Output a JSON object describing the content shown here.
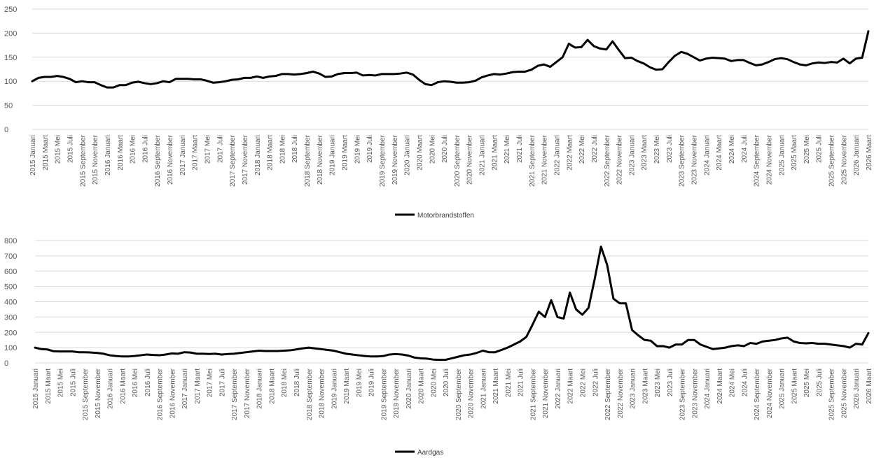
{
  "chart_data": [
    {
      "type": "line",
      "title": "",
      "xlabel": "",
      "ylabel": "",
      "ylim": [
        0,
        250
      ],
      "yticks": [
        0,
        50,
        100,
        150,
        200,
        250
      ],
      "grid": true,
      "legend": "bottom",
      "line_color": "#000000",
      "x_tick_labels": [
        "2015 Januari",
        "2015 Maart",
        "2015 Mei",
        "2015 Juli",
        "2015 September",
        "2015 November",
        "2016 Januari",
        "2016 Maart",
        "2016 Mei",
        "2016 Juli",
        "2016 September",
        "2016 November",
        "2017 Januari",
        "2017 Maart",
        "2017 Mei",
        "2017 Juli",
        "2017 September",
        "2017 November",
        "2018 Januari",
        "2018 Maart",
        "2018 Mei",
        "2018 Juli",
        "2018 September",
        "2018 November",
        "2019 Januari",
        "2019 Maart",
        "2019 Mei",
        "2019 Juli",
        "2019 September",
        "2019 November",
        "2020 Januari",
        "2020 Maart",
        "2020 Mei",
        "2020 Juli",
        "2020 September",
        "2020 November",
        "2021 Januari",
        "2021 Maart",
        "2021 Mei",
        "2021 Juli",
        "2021 September",
        "2021 November",
        "2022 Januari",
        "2022 Maart",
        "2022 Mei",
        "2022 Juli",
        "2022 September",
        "2022 November",
        "2023 Januari",
        "2023 Maart",
        "2023 Mei",
        "2023 Juli",
        "2023 September",
        "2023 November",
        "2024 Januari",
        "2024 Maart",
        "2024 Mei",
        "2024 Juli",
        "2024 September",
        "2024 November",
        "2025 Januari",
        "2025 Maart",
        "2025 Mei",
        "2025 Juli",
        "2025 September",
        "2025 November",
        "2026 Januari",
        "2026 Maart"
      ],
      "series": [
        {
          "name": "Motorbrandstoffen",
          "values": [
            100,
            107,
            109,
            109,
            111,
            109,
            105,
            98,
            100,
            98,
            98,
            92,
            87,
            87,
            92,
            92,
            97,
            99,
            96,
            94,
            96,
            100,
            98,
            105,
            105,
            105,
            104,
            104,
            101,
            97,
            98,
            100,
            103,
            104,
            107,
            107,
            110,
            107,
            110,
            111,
            115,
            115,
            114,
            115,
            117,
            120,
            116,
            109,
            110,
            115,
            117,
            117,
            118,
            112,
            113,
            112,
            115,
            115,
            115,
            116,
            118,
            114,
            103,
            94,
            92,
            98,
            100,
            99,
            97,
            97,
            98,
            101,
            108,
            112,
            115,
            114,
            116,
            119,
            120,
            120,
            124,
            132,
            135,
            130,
            140,
            150,
            178,
            170,
            171,
            186,
            173,
            168,
            166,
            183,
            165,
            148,
            149,
            142,
            137,
            129,
            124,
            125,
            140,
            153,
            161,
            157,
            150,
            143,
            147,
            149,
            148,
            147,
            142,
            144,
            144,
            138,
            133,
            135,
            140,
            146,
            148,
            146,
            140,
            135,
            133,
            137,
            139,
            138,
            140,
            139,
            147,
            137,
            147,
            149,
            204
          ]
        }
      ]
    },
    {
      "type": "line",
      "title": "",
      "xlabel": "",
      "ylabel": "",
      "ylim": [
        0,
        800
      ],
      "yticks": [
        0,
        100,
        200,
        300,
        400,
        500,
        600,
        700,
        800
      ],
      "grid": true,
      "legend": "bottom",
      "line_color": "#000000",
      "x_tick_labels": [
        "2015 Januari",
        "2015 Maart",
        "2015 Mei",
        "2015 Juli",
        "2015 September",
        "2015 November",
        "2016 Januari",
        "2016 Maart",
        "2016 Mei",
        "2016 Juli",
        "2016 September",
        "2016 November",
        "2017 Januari",
        "2017 Maart",
        "2017 Mei",
        "2017 Juli",
        "2017 September",
        "2017 November",
        "2018 Januari",
        "2018 Maart",
        "2018 Mei",
        "2018 Juli",
        "2018 September",
        "2018 November",
        "2019 Januari",
        "2019 Maart",
        "2019 Mei",
        "2019 Juli",
        "2019 September",
        "2019 November",
        "2020 Januari",
        "2020 Maart",
        "2020 Mei",
        "2020 Juli",
        "2020 September",
        "2020 November",
        "2021 Januari",
        "2021 Maart",
        "2021 Mei",
        "2021 Juli",
        "2021 September",
        "2021 November",
        "2022 Januari",
        "2022 Maart",
        "2022 Mei",
        "2022 Juli",
        "2022 September",
        "2022 November",
        "2023 Januari",
        "2023 Maart",
        "2023 Mei",
        "2023 Juli",
        "2023 September",
        "2023 November",
        "2024 Januari",
        "2024 Maart",
        "2024 Mei",
        "2024 Juli",
        "2024 September",
        "2024 November",
        "2025 Januari",
        "2025 Maart",
        "2025 Mei",
        "2025 Juli",
        "2025 September",
        "2025 November",
        "2026 Januari",
        "2026 Maart"
      ],
      "series": [
        {
          "name": "Aardgas",
          "values": [
            100,
            90,
            88,
            76,
            75,
            75,
            75,
            70,
            70,
            68,
            65,
            60,
            50,
            45,
            42,
            42,
            45,
            50,
            55,
            52,
            50,
            55,
            62,
            60,
            70,
            68,
            60,
            60,
            58,
            60,
            55,
            58,
            60,
            65,
            70,
            75,
            80,
            78,
            78,
            78,
            80,
            82,
            88,
            95,
            100,
            95,
            90,
            85,
            80,
            70,
            60,
            55,
            50,
            45,
            42,
            42,
            45,
            55,
            58,
            55,
            48,
            35,
            30,
            28,
            22,
            20,
            20,
            30,
            40,
            50,
            55,
            65,
            80,
            70,
            70,
            85,
            100,
            120,
            140,
            170,
            250,
            335,
            300,
            410,
            300,
            290,
            460,
            350,
            315,
            360,
            550,
            760,
            640,
            420,
            390,
            390,
            215,
            180,
            150,
            145,
            110,
            110,
            100,
            120,
            120,
            150,
            150,
            120,
            105,
            90,
            95,
            100,
            110,
            115,
            110,
            130,
            125,
            140,
            145,
            150,
            160,
            165,
            140,
            130,
            128,
            130,
            125,
            125,
            120,
            115,
            110,
            100,
            125,
            120,
            195
          ]
        }
      ]
    }
  ]
}
